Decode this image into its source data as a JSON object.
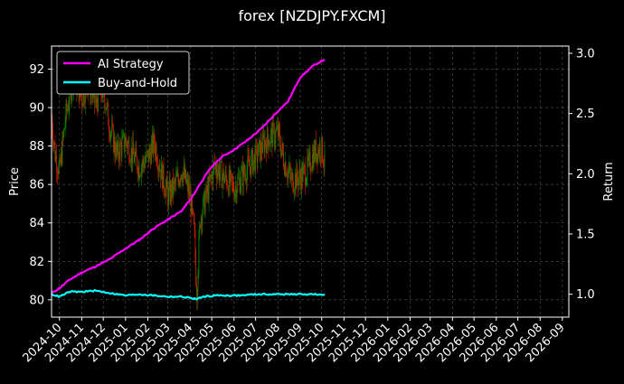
{
  "chart_data": {
    "type": "line",
    "title": "forex [NZDJPY.FXCM]",
    "ylabel_left": "Price",
    "ylabel_right": "Return",
    "xlabel": "",
    "x_axis_type": "date",
    "xlim": [
      "2024-09-20",
      "2026-09-10"
    ],
    "ylim_left": [
      79.1,
      93.2
    ],
    "ylim_right": [
      0.81,
      3.06
    ],
    "yticks_left": [
      80,
      82,
      84,
      86,
      88,
      90,
      92
    ],
    "yticks_right": [
      1.0,
      1.5,
      2.0,
      2.5,
      3.0
    ],
    "xtick_labels": [
      "2024-10",
      "2024-11",
      "2024-12",
      "2025-01",
      "2025-02",
      "2025-03",
      "2025-04",
      "2025-05",
      "2025-06",
      "2025-07",
      "2025-08",
      "2025-09",
      "2025-10",
      "2025-11",
      "2025-12",
      "2026-01",
      "2026-02",
      "2026-03",
      "2026-04",
      "2026-05",
      "2026-06",
      "2026-07",
      "2026-08",
      "2026-09"
    ],
    "grid": true,
    "legend_position": "top-left",
    "colors": {
      "background": "#000000",
      "grid": "#555555",
      "up_candle": "#008800",
      "down_candle": "#cc2200",
      "ai_strategy": "#ff00ff",
      "buy_and_hold": "#00ffff"
    },
    "price_series": {
      "name": "",
      "axis": "left",
      "style": "candlestick",
      "dates": [
        "2024-09-20",
        "2024-09-25",
        "2024-10-01",
        "2024-10-10",
        "2024-10-20",
        "2024-11-01",
        "2024-11-10",
        "2024-11-20",
        "2024-12-01",
        "2024-12-10",
        "2024-12-20",
        "2025-01-01",
        "2025-01-10",
        "2025-01-20",
        "2025-02-01",
        "2025-02-10",
        "2025-02-20",
        "2025-03-01",
        "2025-03-10",
        "2025-03-20",
        "2025-04-01",
        "2025-04-07",
        "2025-04-10",
        "2025-04-15",
        "2025-04-25",
        "2025-05-05",
        "2025-05-15",
        "2025-06-01",
        "2025-06-15",
        "2025-07-01",
        "2025-07-15",
        "2025-08-01",
        "2025-08-10",
        "2025-08-20",
        "2025-09-01",
        "2025-09-10",
        "2025-09-20",
        "2025-09-30",
        "2025-10-05"
      ],
      "close": [
        89.4,
        87.6,
        86.7,
        89.6,
        91.7,
        90.5,
        91.4,
        90.2,
        91.0,
        89.0,
        87.6,
        88.3,
        87.6,
        86.9,
        87.4,
        88.2,
        86.6,
        85.4,
        85.9,
        86.8,
        85.4,
        83.2,
        80.4,
        84.3,
        85.6,
        87.0,
        86.5,
        85.8,
        86.6,
        87.4,
        88.3,
        88.7,
        87.2,
        86.2,
        86.4,
        86.7,
        87.6,
        88.0,
        87.1
      ]
    },
    "series": [
      {
        "name": "AI Strategy",
        "axis": "right",
        "dates": [
          "2024-09-20",
          "2024-10-01",
          "2024-10-15",
          "2024-11-01",
          "2024-11-20",
          "2024-12-10",
          "2025-01-01",
          "2025-01-20",
          "2025-02-10",
          "2025-03-01",
          "2025-03-20",
          "2025-04-05",
          "2025-04-15",
          "2025-05-01",
          "2025-05-15",
          "2025-06-01",
          "2025-06-20",
          "2025-07-10",
          "2025-08-01",
          "2025-08-15",
          "2025-09-01",
          "2025-09-20",
          "2025-10-05"
        ],
        "values": [
          1.01,
          1.05,
          1.12,
          1.18,
          1.23,
          1.29,
          1.38,
          1.45,
          1.55,
          1.62,
          1.69,
          1.82,
          1.92,
          2.06,
          2.14,
          2.2,
          2.28,
          2.38,
          2.52,
          2.6,
          2.8,
          2.9,
          2.95
        ]
      },
      {
        "name": "Buy-and-Hold",
        "axis": "right",
        "dates": [
          "2024-09-20",
          "2024-10-01",
          "2024-10-15",
          "2024-11-01",
          "2024-11-20",
          "2024-12-10",
          "2025-01-01",
          "2025-01-20",
          "2025-02-10",
          "2025-03-01",
          "2025-03-20",
          "2025-04-01",
          "2025-04-10",
          "2025-04-20",
          "2025-05-05",
          "2025-05-20",
          "2025-06-10",
          "2025-07-01",
          "2025-07-20",
          "2025-08-10",
          "2025-09-01",
          "2025-09-20",
          "2025-10-05"
        ],
        "values": [
          1.0,
          0.98,
          1.02,
          1.02,
          1.03,
          1.01,
          0.99,
          1.0,
          0.99,
          0.98,
          0.98,
          0.97,
          0.96,
          0.98,
          0.99,
          0.99,
          0.99,
          1.0,
          1.0,
          1.0,
          1.0,
          1.0,
          0.99
        ]
      }
    ]
  }
}
